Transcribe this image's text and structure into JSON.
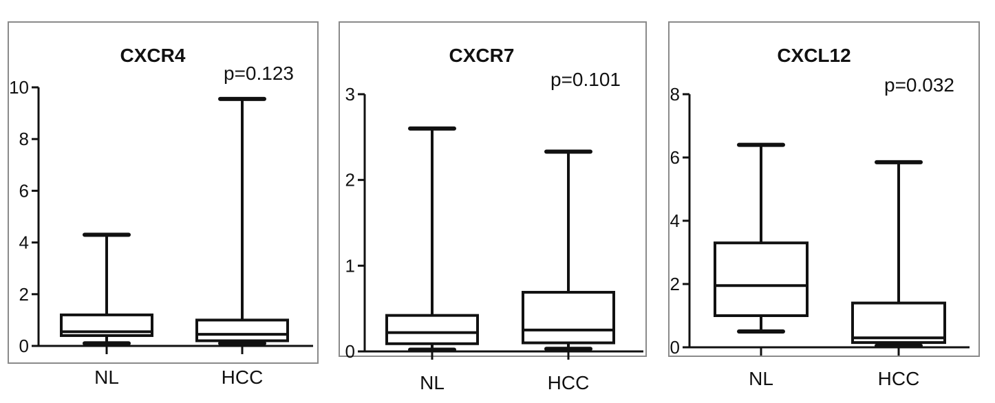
{
  "chart_data": [
    {
      "type": "box",
      "title": "CXCR4",
      "annotation": "p=0.123",
      "categories": [
        "NL",
        "HCC"
      ],
      "ylim": [
        0,
        10
      ],
      "yticks": [
        0,
        2,
        4,
        6,
        8,
        10
      ],
      "boxes": [
        {
          "category": "NL",
          "min": 0.1,
          "q1": 0.4,
          "median": 0.55,
          "q3": 1.2,
          "max": 4.3
        },
        {
          "category": "HCC",
          "min": 0.1,
          "q1": 0.2,
          "median": 0.45,
          "q3": 1.0,
          "max": 9.55
        }
      ]
    },
    {
      "type": "box",
      "title": "CXCR7",
      "annotation": "p=0.101",
      "categories": [
        "NL",
        "HCC"
      ],
      "ylim": [
        0,
        3
      ],
      "yticks": [
        0,
        1,
        2,
        3
      ],
      "boxes": [
        {
          "category": "NL",
          "min": 0.02,
          "q1": 0.09,
          "median": 0.22,
          "q3": 0.42,
          "max": 2.6
        },
        {
          "category": "HCC",
          "min": 0.03,
          "q1": 0.1,
          "median": 0.25,
          "q3": 0.69,
          "max": 2.33
        }
      ]
    },
    {
      "type": "box",
      "title": "CXCL12",
      "annotation": "p=0.032",
      "categories": [
        "NL",
        "HCC"
      ],
      "ylim": [
        0,
        8
      ],
      "yticks": [
        0,
        2,
        4,
        6,
        8
      ],
      "boxes": [
        {
          "category": "NL",
          "min": 0.5,
          "q1": 1.0,
          "median": 1.95,
          "q3": 3.3,
          "max": 6.4
        },
        {
          "category": "HCC",
          "min": 0.05,
          "q1": 0.15,
          "median": 0.3,
          "q3": 1.4,
          "max": 5.85
        }
      ]
    }
  ]
}
